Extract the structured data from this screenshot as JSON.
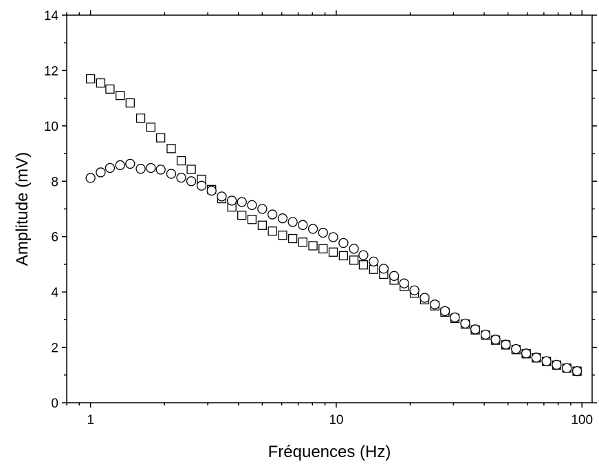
{
  "chart_data": {
    "type": "scatter",
    "xlabel": "Fréquences (Hz)",
    "ylabel": "Amplitude (mV)",
    "xscale": "log",
    "xlim": [
      0.8,
      110
    ],
    "ylim": [
      0,
      14
    ],
    "x_ticks": [
      1,
      10,
      100
    ],
    "x_tick_labels": [
      "1",
      "10",
      "100"
    ],
    "y_ticks": [
      0,
      2,
      4,
      6,
      8,
      10,
      12,
      14
    ],
    "y_tick_labels": [
      "0",
      "2",
      "4",
      "6",
      "8",
      "10",
      "12",
      "14"
    ],
    "grid": false,
    "series": [
      {
        "marker": "square",
        "points": [
          [
            1.0,
            11.7
          ],
          [
            1.1,
            11.55
          ],
          [
            1.2,
            11.33
          ],
          [
            1.32,
            11.1
          ],
          [
            1.45,
            10.83
          ],
          [
            1.6,
            10.28
          ],
          [
            1.76,
            9.95
          ],
          [
            1.93,
            9.57
          ],
          [
            2.13,
            9.18
          ],
          [
            2.34,
            8.74
          ],
          [
            2.57,
            8.43
          ],
          [
            2.83,
            8.07
          ],
          [
            3.11,
            7.7
          ],
          [
            3.42,
            7.37
          ],
          [
            3.76,
            7.07
          ],
          [
            4.13,
            6.77
          ],
          [
            4.54,
            6.62
          ],
          [
            5.0,
            6.41
          ],
          [
            5.5,
            6.2
          ],
          [
            6.05,
            6.05
          ],
          [
            6.65,
            5.93
          ],
          [
            7.31,
            5.8
          ],
          [
            8.04,
            5.67
          ],
          [
            8.84,
            5.56
          ],
          [
            9.72,
            5.44
          ],
          [
            10.7,
            5.31
          ],
          [
            11.8,
            5.15
          ],
          [
            12.9,
            4.98
          ],
          [
            14.2,
            4.82
          ],
          [
            15.6,
            4.64
          ],
          [
            17.2,
            4.43
          ],
          [
            18.9,
            4.2
          ],
          [
            20.8,
            3.96
          ],
          [
            22.9,
            3.72
          ],
          [
            25.2,
            3.5
          ],
          [
            27.7,
            3.27
          ],
          [
            30.4,
            3.05
          ],
          [
            33.5,
            2.84
          ],
          [
            36.8,
            2.63
          ],
          [
            40.5,
            2.44
          ],
          [
            44.5,
            2.26
          ],
          [
            49.0,
            2.09
          ],
          [
            53.9,
            1.92
          ],
          [
            59.3,
            1.77
          ],
          [
            65.2,
            1.62
          ],
          [
            71.7,
            1.49
          ],
          [
            78.9,
            1.36
          ],
          [
            86.8,
            1.25
          ],
          [
            95.5,
            1.14
          ]
        ]
      },
      {
        "marker": "circle",
        "points": [
          [
            1.0,
            8.12
          ],
          [
            1.1,
            8.32
          ],
          [
            1.2,
            8.48
          ],
          [
            1.32,
            8.58
          ],
          [
            1.45,
            8.63
          ],
          [
            1.6,
            8.45
          ],
          [
            1.76,
            8.48
          ],
          [
            1.93,
            8.42
          ],
          [
            2.13,
            8.27
          ],
          [
            2.34,
            8.13
          ],
          [
            2.57,
            8.0
          ],
          [
            2.83,
            7.84
          ],
          [
            3.11,
            7.66
          ],
          [
            3.42,
            7.45
          ],
          [
            3.76,
            7.3
          ],
          [
            4.13,
            7.25
          ],
          [
            4.54,
            7.14
          ],
          [
            5.0,
            7.0
          ],
          [
            5.5,
            6.8
          ],
          [
            6.05,
            6.66
          ],
          [
            6.65,
            6.53
          ],
          [
            7.31,
            6.42
          ],
          [
            8.04,
            6.28
          ],
          [
            8.84,
            6.14
          ],
          [
            9.72,
            5.98
          ],
          [
            10.7,
            5.77
          ],
          [
            11.8,
            5.56
          ],
          [
            12.9,
            5.33
          ],
          [
            14.2,
            5.1
          ],
          [
            15.6,
            4.84
          ],
          [
            17.2,
            4.58
          ],
          [
            18.9,
            4.31
          ],
          [
            20.8,
            4.06
          ],
          [
            22.9,
            3.79
          ],
          [
            25.2,
            3.55
          ],
          [
            27.7,
            3.31
          ],
          [
            30.4,
            3.08
          ],
          [
            33.5,
            2.86
          ],
          [
            36.8,
            2.65
          ],
          [
            40.5,
            2.46
          ],
          [
            44.5,
            2.28
          ],
          [
            49.0,
            2.1
          ],
          [
            53.9,
            1.94
          ],
          [
            59.3,
            1.78
          ],
          [
            65.2,
            1.63
          ],
          [
            71.7,
            1.5
          ],
          [
            78.9,
            1.37
          ],
          [
            86.8,
            1.25
          ],
          [
            95.5,
            1.14
          ]
        ]
      }
    ]
  }
}
